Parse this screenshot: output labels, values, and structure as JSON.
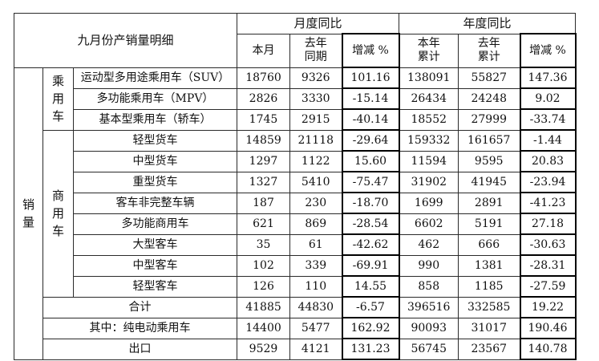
{
  "table": {
    "title": "九月份产销量明细",
    "group_monthly": "月度同比",
    "group_yearly": "年度同比",
    "col_this_month": "本月",
    "col_last_year_same_line1": "去年",
    "col_last_year_same_line2": "同期",
    "col_change": "增减 %",
    "col_ytd_line1": "本年",
    "col_ytd_line2": "累计",
    "col_ly_ytd_line1": "去年",
    "col_ly_ytd_line2": "累计",
    "col_change2": "增减 %",
    "section_sales": "销量",
    "group_passenger": "乘用车",
    "group_commercial": "商用车",
    "rows": [
      {
        "label": "运动型多用途乘用车（SUV）",
        "v1": "18760",
        "v2": "9326",
        "v3": "101.16",
        "v4": "138091",
        "v5": "55827",
        "v6": "147.36"
      },
      {
        "label": "多功能乘用车（MPV）",
        "v1": "2826",
        "v2": "3330",
        "v3": "-15.14",
        "v4": "26434",
        "v5": "24248",
        "v6": "9.02"
      },
      {
        "label": "基本型乘用车（轿车）",
        "v1": "1745",
        "v2": "2915",
        "v3": "-40.14",
        "v4": "18552",
        "v5": "27999",
        "v6": "-33.74"
      },
      {
        "label": "轻型货车",
        "v1": "14859",
        "v2": "21118",
        "v3": "-29.64",
        "v4": "159332",
        "v5": "161657",
        "v6": "-1.44"
      },
      {
        "label": "中型货车",
        "v1": "1297",
        "v2": "1122",
        "v3": "15.60",
        "v4": "11594",
        "v5": "9595",
        "v6": "20.83"
      },
      {
        "label": "重型货车",
        "v1": "1327",
        "v2": "5410",
        "v3": "-75.47",
        "v4": "31902",
        "v5": "41945",
        "v6": "-23.94"
      },
      {
        "label": "客车非完整车辆",
        "v1": "187",
        "v2": "230",
        "v3": "-18.70",
        "v4": "1699",
        "v5": "2891",
        "v6": "-41.23"
      },
      {
        "label": "多功能商用车",
        "v1": "621",
        "v2": "869",
        "v3": "-28.54",
        "v4": "6602",
        "v5": "5191",
        "v6": "27.18"
      },
      {
        "label": "大型客车",
        "v1": "35",
        "v2": "61",
        "v3": "-42.62",
        "v4": "462",
        "v5": "666",
        "v6": "-30.63"
      },
      {
        "label": "中型客车",
        "v1": "102",
        "v2": "339",
        "v3": "-69.91",
        "v4": "990",
        "v5": "1381",
        "v6": "-28.31"
      },
      {
        "label": "轻型客车",
        "v1": "126",
        "v2": "110",
        "v3": "14.55",
        "v4": "858",
        "v5": "1185",
        "v6": "-27.59"
      }
    ],
    "total": {
      "label": "合计",
      "v1": "41885",
      "v2": "44830",
      "v3": "-6.57",
      "v4": "396516",
      "v5": "332585",
      "v6": "19.22"
    },
    "ev": {
      "label": "其中：纯电动乘用车",
      "v1": "14400",
      "v2": "5477",
      "v3": "162.92",
      "v4": "90093",
      "v5": "31017",
      "v6": "190.46"
    },
    "export": {
      "label": "出口",
      "v1": "9529",
      "v2": "4121",
      "v3": "131.23",
      "v4": "56745",
      "v5": "23567",
      "v6": "140.78"
    }
  }
}
